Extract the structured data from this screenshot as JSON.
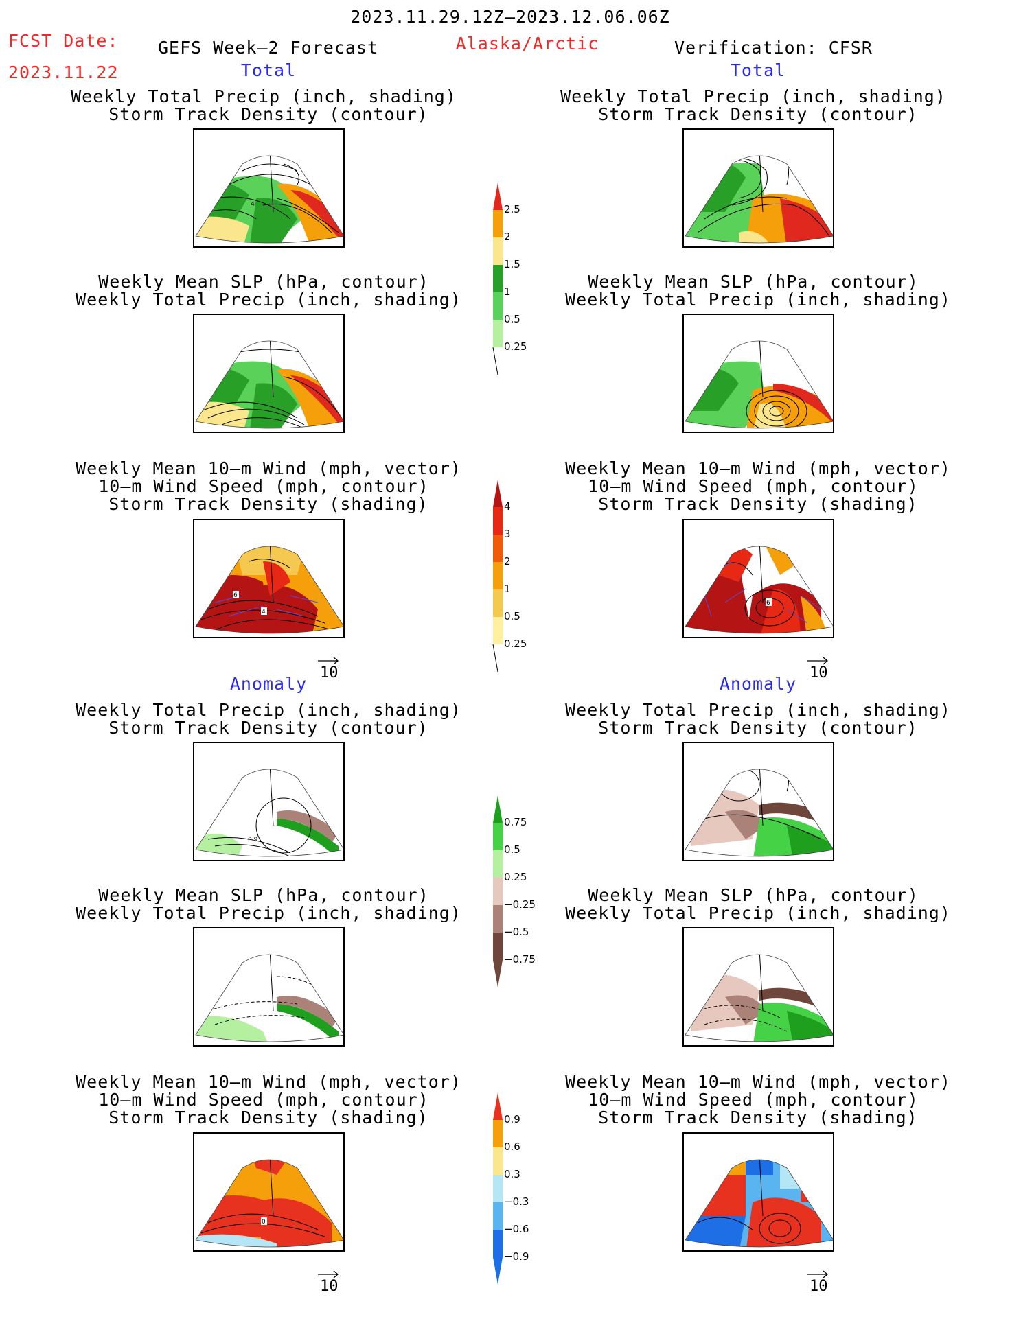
{
  "header": {
    "date_range": "2023.11.29.12Z–2023.12.06.06Z",
    "fcst_label": "FCST Date:",
    "fcst_date": "2023.11.22",
    "product": "GEFS Week–2 Forecast",
    "region": "Alaska/Arctic",
    "verification": "Verification: CFSR"
  },
  "sections": {
    "total_left": "Total",
    "total_right": "Total",
    "anomaly_left": "Anomaly",
    "anomaly_right": "Anomaly"
  },
  "titles": {
    "precip_storm": [
      "Weekly Total Precip (inch, shading)",
      "Storm Track Density (contour)"
    ],
    "slp_precip": [
      "Weekly Mean SLP (hPa, contour)",
      "Weekly Total Precip (inch, shading)"
    ],
    "wind_storm": [
      "Weekly Mean 10–m Wind (mph, vector)",
      "10–m Wind Speed (mph, contour)",
      "Storm Track Density (shading)"
    ]
  },
  "vector_reference": "10",
  "panel_labels": {
    "left_precip_contour": "4",
    "left_wind_a": "6",
    "left_wind_b": "4",
    "right_wind": "6",
    "left_anom_precip": "0.9",
    "left_anom_wind": "0"
  },
  "colorbars": {
    "precip": {
      "labels": [
        "2.5",
        "2",
        "1.5",
        "1",
        "0.5",
        "0.25"
      ],
      "colors": [
        "#e0281e",
        "#f5a00a",
        "#fae68c",
        "#28a028",
        "#5ad25a",
        "#b4f0a0"
      ]
    },
    "storm_density": {
      "labels": [
        "4",
        "3",
        "2",
        "1",
        "0.5",
        "0.25"
      ],
      "colors": [
        "#b41414",
        "#e62814",
        "#f05a0a",
        "#f5a00a",
        "#f5c850",
        "#fff0a0"
      ]
    },
    "precip_anomaly": {
      "labels": [
        "0.75",
        "0.5",
        "0.25",
        "−0.25",
        "−0.5",
        "−0.75"
      ],
      "colors": [
        "#1ea01e",
        "#46d246",
        "#b4f0a0",
        "#e6c8be",
        "#aa8278",
        "#6e463c"
      ]
    },
    "storm_anomaly": {
      "labels": [
        "0.9",
        "0.6",
        "0.3",
        "−0.3",
        "−0.6",
        "−0.9"
      ],
      "colors": [
        "#e6321e",
        "#f5a00a",
        "#fae68c",
        "#b4e6f5",
        "#5ab4f0",
        "#1e6ee6"
      ]
    }
  },
  "colors": {
    "header_red": "#f02828",
    "section_blue": "#2b2bf0",
    "vector_blue": "#5050dc"
  }
}
